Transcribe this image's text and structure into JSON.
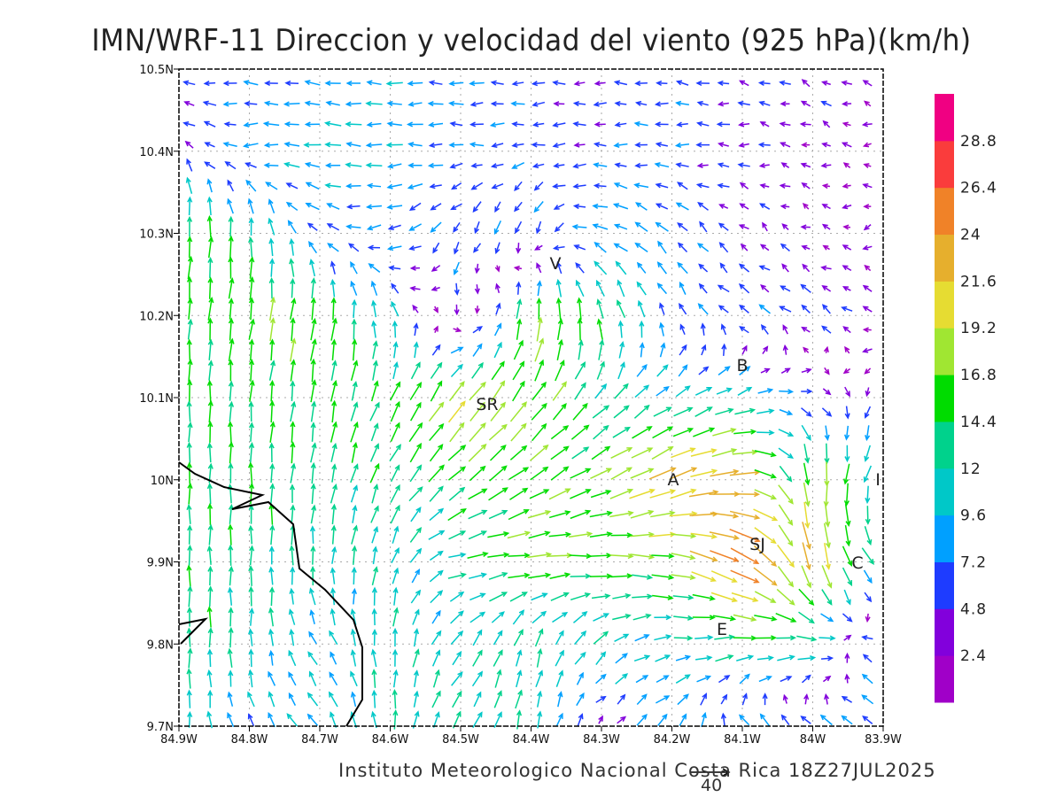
{
  "title": "IMN/WRF-11 Direccion y velocidad del viento (925 hPa)(km/h)",
  "footer": "Instituto Meteorologico Nacional Costa Rica  18Z27JUL2025",
  "reference_vector": {
    "label": "40",
    "value": 40
  },
  "chart_data": {
    "type": "vector-field",
    "title": "IMN/WRF-11 Direccion y velocidad del viento (925 hPa)(km/h)",
    "units": "km/h",
    "x_ticks": [
      "84.9W",
      "84.8W",
      "84.7W",
      "84.6W",
      "84.5W",
      "84.4W",
      "84.3W",
      "84.2W",
      "84.1W",
      "84W",
      "83.9W"
    ],
    "y_ticks": [
      "10.5N",
      "10.4N",
      "10.3N",
      "10.2N",
      "10.1N",
      "10N",
      "9.9N",
      "9.8N",
      "9.7N"
    ],
    "xlim": [
      -84.9,
      -83.9
    ],
    "ylim": [
      9.7,
      10.5
    ],
    "grid": true,
    "field_lons": [
      -84.9,
      -84.8,
      -84.7,
      -84.6,
      -84.5,
      -84.4,
      -84.3,
      -84.2,
      -84.1,
      -84.0,
      -83.9
    ],
    "field_lats": [
      10.5,
      10.4,
      10.3,
      10.2,
      10.1,
      10.0,
      9.9,
      9.8,
      9.7
    ],
    "uv": [
      [
        [
          -6,
          -1
        ],
        [
          -7,
          1
        ],
        [
          -8,
          1
        ],
        [
          -9,
          0
        ],
        [
          -8,
          0
        ],
        [
          -6,
          0
        ],
        [
          -5,
          0
        ],
        [
          -6,
          1
        ],
        [
          -5,
          1
        ],
        [
          -4,
          2
        ],
        [
          -3,
          1
        ]
      ],
      [
        [
          -3,
          5
        ],
        [
          -8,
          -1
        ],
        [
          -10,
          1
        ],
        [
          -9,
          0
        ],
        [
          -7,
          0
        ],
        [
          -6,
          -1
        ],
        [
          -6,
          0
        ],
        [
          -7,
          0
        ],
        [
          -5,
          0
        ],
        [
          -3,
          1
        ],
        [
          -2,
          0
        ]
      ],
      [
        [
          1,
          16
        ],
        [
          0,
          14
        ],
        [
          -6,
          4
        ],
        [
          -8,
          -3
        ],
        [
          -3,
          -6
        ],
        [
          -2,
          -8
        ],
        [
          -9,
          3
        ],
        [
          -6,
          6
        ],
        [
          -3,
          3
        ],
        [
          -2,
          1
        ],
        [
          -2,
          -1
        ]
      ],
      [
        [
          1,
          15
        ],
        [
          2,
          16
        ],
        [
          3,
          17
        ],
        [
          -3,
          10
        ],
        [
          1,
          -6
        ],
        [
          2,
          18
        ],
        [
          -4,
          15
        ],
        [
          -3,
          6
        ],
        [
          -6,
          4
        ],
        [
          -5,
          4
        ],
        [
          -3,
          2
        ]
      ],
      [
        [
          0,
          15
        ],
        [
          1,
          14
        ],
        [
          2,
          15
        ],
        [
          6,
          13
        ],
        [
          12,
          16
        ],
        [
          10,
          14
        ],
        [
          9,
          10
        ],
        [
          10,
          6
        ],
        [
          11,
          4
        ],
        [
          6,
          -2
        ],
        [
          -3,
          -5
        ]
      ],
      [
        [
          0,
          14
        ],
        [
          0,
          14
        ],
        [
          2,
          13
        ],
        [
          6,
          12
        ],
        [
          12,
          10
        ],
        [
          13,
          9
        ],
        [
          15,
          7
        ],
        [
          21,
          9
        ],
        [
          24,
          2
        ],
        [
          0,
          -20
        ],
        [
          -5,
          -10
        ]
      ],
      [
        [
          0,
          14
        ],
        [
          0,
          13
        ],
        [
          0,
          12
        ],
        [
          3,
          11
        ],
        [
          12,
          2
        ],
        [
          18,
          1
        ],
        [
          16,
          -1
        ],
        [
          17,
          -3
        ],
        [
          24,
          -13
        ],
        [
          4,
          -22
        ],
        [
          9,
          -8
        ]
      ],
      [
        [
          0,
          14
        ],
        [
          0,
          12
        ],
        [
          -5,
          7
        ],
        [
          0,
          12
        ],
        [
          7,
          9
        ],
        [
          3,
          12
        ],
        [
          8,
          8
        ],
        [
          10,
          1
        ],
        [
          15,
          2
        ],
        [
          14,
          0
        ],
        [
          -10,
          4
        ]
      ],
      [
        [
          0,
          11
        ],
        [
          -4,
          7
        ],
        [
          -6,
          8
        ],
        [
          0,
          12
        ],
        [
          6,
          10
        ],
        [
          2,
          12
        ],
        [
          2,
          2
        ],
        [
          6,
          8
        ],
        [
          -6,
          7
        ],
        [
          -7,
          5
        ],
        [
          -6,
          5
        ]
      ]
    ],
    "colorbar": {
      "labels": [
        "2.4",
        "4.8",
        "7.2",
        "9.6",
        "12",
        "14.4",
        "16.8",
        "19.2",
        "21.6",
        "24",
        "26.4",
        "28.8"
      ],
      "levels": [
        2.4,
        4.8,
        7.2,
        9.6,
        12,
        14.4,
        16.8,
        19.2,
        21.6,
        24,
        26.4,
        28.8
      ],
      "colors": [
        "#a000c8",
        "#8200dc",
        "#1e3cff",
        "#00a0ff",
        "#00c8c8",
        "#00d28c",
        "#00dc00",
        "#a0e632",
        "#e6dc32",
        "#e6af2d",
        "#f08228",
        "#fa3c3c",
        "#f00082"
      ]
    },
    "places": [
      "V",
      "SR",
      "B",
      "A",
      "SJ",
      "C",
      "E",
      "L"
    ]
  }
}
